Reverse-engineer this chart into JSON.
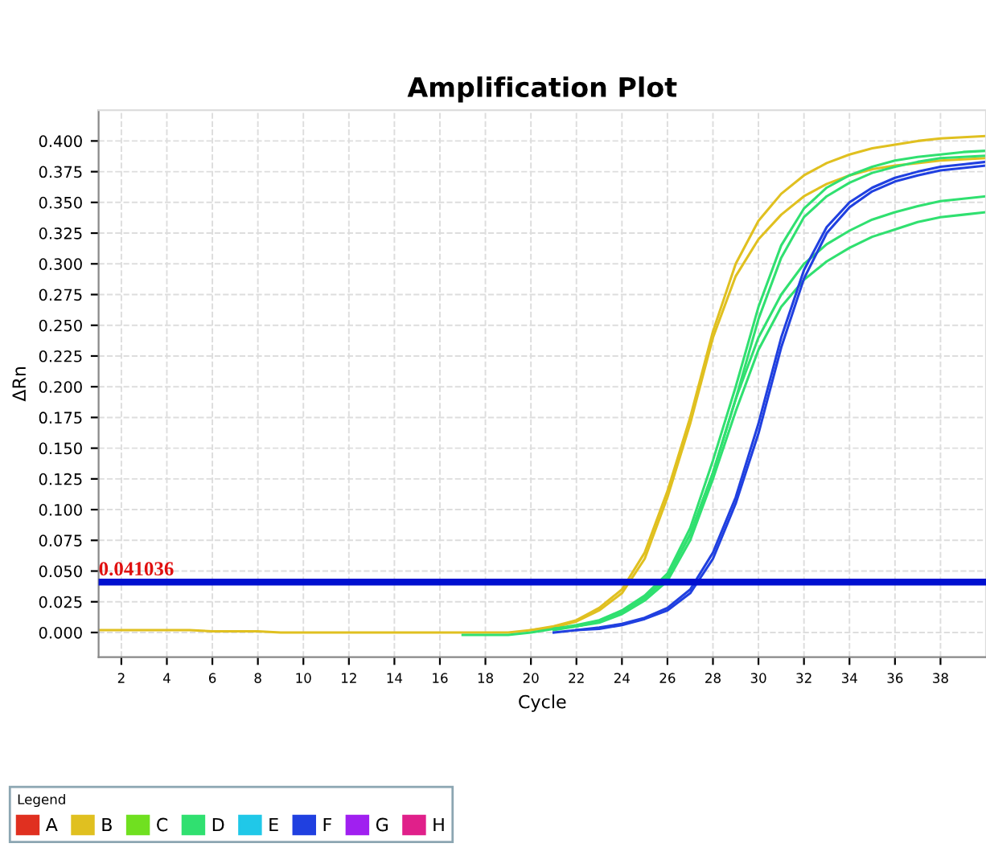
{
  "chart_data": {
    "type": "line",
    "title": "Amplification Plot",
    "xlabel": "Cycle",
    "ylabel": "ΔRn",
    "legend_title": "Legend",
    "x": [
      1,
      2,
      3,
      4,
      5,
      6,
      7,
      8,
      9,
      10,
      11,
      12,
      13,
      14,
      15,
      16,
      17,
      18,
      19,
      20,
      21,
      22,
      23,
      24,
      25,
      26,
      27,
      28,
      29,
      30,
      31,
      32,
      33,
      34,
      35,
      36,
      37,
      38,
      39,
      40
    ],
    "xlim": [
      1,
      40
    ],
    "ylim": [
      -0.02,
      0.425
    ],
    "xticks": [
      2,
      4,
      6,
      8,
      10,
      12,
      14,
      16,
      18,
      20,
      22,
      24,
      26,
      28,
      30,
      32,
      34,
      36,
      38
    ],
    "yticks": [
      {
        "value": 0,
        "label": "0.000"
      },
      {
        "value": 0.025,
        "label": "0.025"
      },
      {
        "value": 0.05,
        "label": "0.050"
      },
      {
        "value": 0.075,
        "label": "0.075"
      },
      {
        "value": 0.1,
        "label": "0.100"
      },
      {
        "value": 0.125,
        "label": "0.125"
      },
      {
        "value": 0.15,
        "label": "0.150"
      },
      {
        "value": 0.175,
        "label": "0.175"
      },
      {
        "value": 0.2,
        "label": "0.200"
      },
      {
        "value": 0.225,
        "label": "0.225"
      },
      {
        "value": 0.25,
        "label": "0.250"
      },
      {
        "value": 0.275,
        "label": "0.275"
      },
      {
        "value": 0.3,
        "label": "0.300"
      },
      {
        "value": 0.325,
        "label": "0.325"
      },
      {
        "value": 0.35,
        "label": "0.350"
      },
      {
        "value": 0.375,
        "label": "0.375"
      },
      {
        "value": 0.4,
        "label": "0.400"
      }
    ],
    "grid": true,
    "legend": "bottom",
    "marker": "none",
    "line_style": "solid",
    "ref_lines": [
      {
        "axis": "y",
        "value": 0.041036,
        "label": "0.041036",
        "color": "#0010d0",
        "line_style": "solid"
      }
    ],
    "series": [
      {
        "name": "A",
        "color": "#e03020",
        "values": [
          null,
          null,
          null,
          null,
          null,
          null,
          null,
          null,
          null,
          null,
          null,
          null,
          null,
          null,
          null,
          null,
          null,
          null,
          null,
          null,
          null,
          null,
          null,
          null,
          null,
          null,
          null,
          null,
          null,
          null,
          null,
          null,
          null,
          null,
          null,
          null,
          null,
          null,
          null,
          null
        ]
      },
      {
        "name": "B",
        "color": "#e0c020",
        "values": [
          0.002,
          0.002,
          0.002,
          0.002,
          0.002,
          0.001,
          0.001,
          0.001,
          0,
          0,
          0,
          0,
          0,
          0,
          0,
          0,
          0,
          0,
          0,
          0.002,
          0.005,
          0.01,
          0.02,
          0.035,
          0.065,
          0.115,
          0.175,
          0.245,
          0.3,
          0.335,
          0.357,
          0.372,
          0.382,
          0.389,
          0.394,
          0.397,
          0.4,
          0.402,
          0.403,
          0.404
        ]
      },
      {
        "color": "#e0c020",
        "values": [
          null,
          null,
          null,
          null,
          null,
          null,
          null,
          null,
          null,
          null,
          null,
          null,
          null,
          null,
          null,
          null,
          null,
          null,
          null,
          0.002,
          0.004,
          0.009,
          0.018,
          0.032,
          0.06,
          0.11,
          0.17,
          0.24,
          0.29,
          0.32,
          0.34,
          0.355,
          0.365,
          0.372,
          0.377,
          0.38,
          0.382,
          0.384,
          0.385,
          0.386
        ]
      },
      {
        "name": "C",
        "color": "#70e020",
        "values": [
          null,
          null,
          null,
          null,
          null,
          null,
          null,
          null,
          null,
          null,
          null,
          null,
          null,
          null,
          null,
          null,
          null,
          null,
          null,
          null,
          null,
          null,
          null,
          null,
          null,
          null,
          null,
          null,
          null,
          null,
          null,
          null,
          null,
          null,
          null,
          null,
          null,
          null,
          null,
          null
        ]
      },
      {
        "name": "D",
        "color": "#30e070",
        "values": [
          null,
          null,
          null,
          null,
          null,
          null,
          null,
          null,
          null,
          null,
          null,
          null,
          null,
          null,
          null,
          null,
          -0.002,
          -0.002,
          -0.002,
          0,
          0.003,
          0.006,
          0.01,
          0.018,
          0.03,
          0.048,
          0.085,
          0.14,
          0.2,
          0.265,
          0.315,
          0.345,
          0.362,
          0.372,
          0.379,
          0.384,
          0.387,
          0.389,
          0.391,
          0.392
        ]
      },
      {
        "color": "#30e070",
        "values": [
          null,
          null,
          null,
          null,
          null,
          null,
          null,
          null,
          null,
          null,
          null,
          null,
          null,
          null,
          null,
          null,
          null,
          null,
          null,
          null,
          0.003,
          0.005,
          0.009,
          0.017,
          0.028,
          0.045,
          0.08,
          0.13,
          0.19,
          0.255,
          0.305,
          0.338,
          0.355,
          0.366,
          0.374,
          0.379,
          0.383,
          0.386,
          0.387,
          0.388
        ]
      },
      {
        "color": "#30e070",
        "values": [
          null,
          null,
          null,
          null,
          null,
          null,
          null,
          null,
          null,
          null,
          null,
          null,
          null,
          null,
          null,
          null,
          null,
          null,
          null,
          null,
          0.003,
          0.005,
          0.009,
          0.016,
          0.028,
          0.045,
          0.08,
          0.13,
          0.19,
          0.24,
          0.275,
          0.3,
          0.316,
          0.327,
          0.336,
          0.342,
          0.347,
          0.351,
          0.353,
          0.355
        ]
      },
      {
        "color": "#30e070",
        "values": [
          null,
          null,
          null,
          null,
          null,
          null,
          null,
          null,
          null,
          null,
          null,
          null,
          null,
          null,
          null,
          null,
          null,
          null,
          null,
          null,
          0.002,
          0.005,
          0.008,
          0.015,
          0.026,
          0.042,
          0.075,
          0.125,
          0.18,
          0.23,
          0.265,
          0.287,
          0.302,
          0.313,
          0.322,
          0.328,
          0.334,
          0.338,
          0.34,
          0.342
        ]
      },
      {
        "name": "E",
        "color": "#20c8e8",
        "values": [
          null,
          null,
          null,
          null,
          null,
          null,
          null,
          null,
          null,
          null,
          null,
          null,
          null,
          null,
          null,
          null,
          null,
          null,
          null,
          null,
          null,
          null,
          null,
          null,
          null,
          null,
          null,
          null,
          null,
          null,
          null,
          null,
          null,
          null,
          null,
          null,
          null,
          null,
          null,
          null
        ]
      },
      {
        "name": "F",
        "color": "#2040e0",
        "values": [
          null,
          null,
          null,
          null,
          null,
          null,
          null,
          null,
          null,
          null,
          null,
          null,
          null,
          null,
          null,
          null,
          null,
          null,
          null,
          null,
          0,
          0.002,
          0.004,
          0.007,
          0.012,
          0.02,
          0.035,
          0.065,
          0.11,
          0.17,
          0.24,
          0.295,
          0.33,
          0.35,
          0.362,
          0.37,
          0.375,
          0.379,
          0.381,
          0.383
        ]
      },
      {
        "color": "#2040e0",
        "values": [
          null,
          null,
          null,
          null,
          null,
          null,
          null,
          null,
          null,
          null,
          null,
          null,
          null,
          null,
          null,
          null,
          null,
          null,
          null,
          null,
          null,
          0.002,
          0.003,
          0.006,
          0.011,
          0.018,
          0.032,
          0.06,
          0.105,
          0.162,
          0.232,
          0.288,
          0.325,
          0.346,
          0.359,
          0.367,
          0.372,
          0.376,
          0.378,
          0.38
        ]
      },
      {
        "name": "G",
        "color": "#a020f0",
        "values": [
          null,
          null,
          null,
          null,
          null,
          null,
          null,
          null,
          null,
          null,
          null,
          null,
          null,
          null,
          null,
          null,
          null,
          null,
          null,
          null,
          null,
          null,
          null,
          null,
          null,
          null,
          null,
          null,
          null,
          null,
          null,
          null,
          null,
          null,
          null,
          null,
          null,
          null,
          null,
          null
        ]
      },
      {
        "name": "H",
        "color": "#e0208a",
        "values": [
          null,
          null,
          null,
          null,
          null,
          null,
          null,
          null,
          null,
          null,
          null,
          null,
          null,
          null,
          null,
          null,
          null,
          null,
          null,
          null,
          null,
          null,
          null,
          null,
          null,
          null,
          null,
          null,
          null,
          null,
          null,
          null,
          null,
          null,
          null,
          null,
          null,
          null,
          null,
          null
        ]
      }
    ]
  }
}
